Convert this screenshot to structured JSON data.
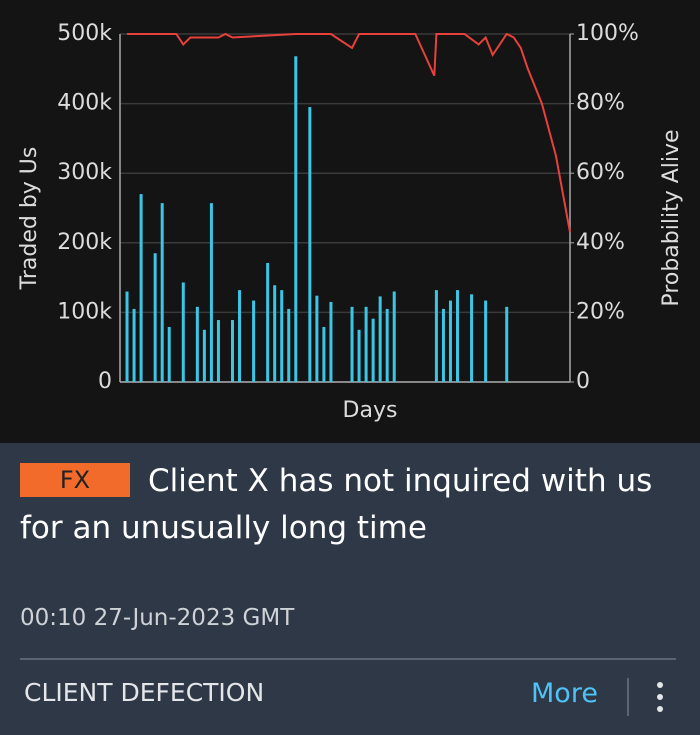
{
  "chart_data": {
    "type": "combo",
    "ylabel": "Traded by Us",
    "y2label": "Probability Alive",
    "xlabel": "Days",
    "xlim": [
      0,
      64
    ],
    "ylim": [
      0,
      500000
    ],
    "yticks": [
      0,
      {
        "value": 100000,
        "label": "100k"
      },
      {
        "value": 200000,
        "label": "200k"
      },
      {
        "value": 300000,
        "label": "300k"
      },
      {
        "value": 400000,
        "label": "400k"
      },
      {
        "value": 500000,
        "label": "500k"
      }
    ],
    "y2lim": [
      0,
      100
    ],
    "y2ticks": [
      0,
      {
        "value": 20,
        "label": "20%"
      },
      {
        "value": 40,
        "label": "40%"
      },
      {
        "value": 60,
        "label": "60%"
      },
      {
        "value": 80,
        "label": "80%"
      },
      {
        "value": 100,
        "label": "100%"
      }
    ],
    "grid": true,
    "bars": {
      "color": "#3cc6e6",
      "x": [
        1,
        2,
        3,
        5,
        6,
        7,
        9,
        11,
        12,
        13,
        14,
        16,
        17,
        19,
        21,
        22,
        23,
        24,
        25,
        27,
        28,
        29,
        30,
        33,
        34,
        35,
        36,
        37,
        38,
        39,
        45,
        46,
        47,
        48,
        50,
        52,
        55
      ],
      "values": [
        130000,
        105000,
        270000,
        185000,
        257000,
        79000,
        143000,
        108000,
        75000,
        257000,
        89000,
        89000,
        132000,
        117000,
        171000,
        139000,
        132000,
        105000,
        468000,
        395000,
        124000,
        79000,
        115000,
        108000,
        75000,
        108000,
        91000,
        123000,
        105000,
        130000,
        132000,
        105000,
        117000,
        132000,
        126000,
        117000,
        108000
      ]
    },
    "line": {
      "color": "#e8413c",
      "axis": "y2",
      "x": [
        1,
        8,
        9,
        10,
        14,
        15,
        16,
        25,
        30,
        33,
        34,
        42,
        44.7,
        45,
        49,
        51,
        52,
        53,
        55,
        56,
        57,
        58,
        60,
        62,
        64
      ],
      "values": [
        100,
        100,
        97,
        99,
        99,
        100,
        99,
        100,
        100,
        96,
        100,
        100,
        88,
        100,
        100,
        97,
        99,
        94,
        100,
        99,
        96,
        90,
        80,
        65,
        43
      ]
    }
  },
  "card": {
    "tag": "FX",
    "title": "Client X has not inquired with us for an unusually long time",
    "timestamp": "00:10 27-Jun-2023 GMT",
    "category": "CLIENT DEFECTION",
    "action": "More"
  }
}
